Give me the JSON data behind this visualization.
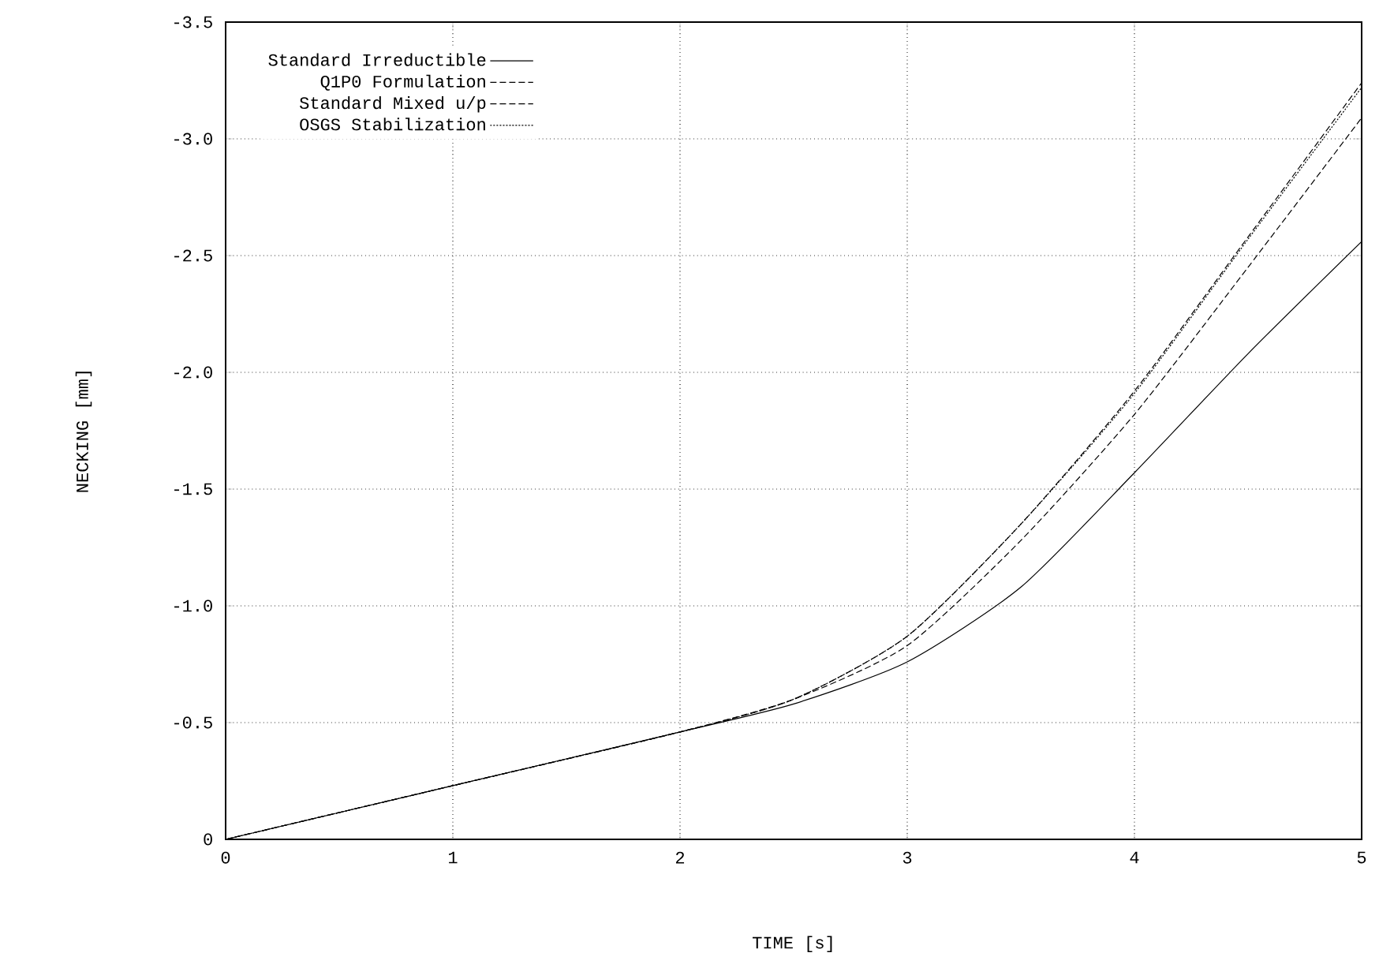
{
  "chart_data": {
    "type": "line",
    "xlabel": "TIME [s]",
    "ylabel": "NECKING [mm]",
    "x": [
      0,
      1,
      2,
      2.5,
      3,
      3.5,
      4,
      4.5,
      5
    ],
    "series": [
      {
        "name": "Standard Irreductible",
        "color": "#000000",
        "line_style": "solid",
        "values": [
          0,
          -0.23,
          -0.46,
          -0.58,
          -0.76,
          -1.08,
          -1.57,
          -2.08,
          -2.56
        ]
      },
      {
        "name": "Q1P0 Formulation",
        "color": "#000000",
        "line_style": "dashed",
        "values": [
          0,
          -0.23,
          -0.46,
          -0.6,
          -0.83,
          -1.28,
          -1.82,
          -2.45,
          -3.09
        ]
      },
      {
        "name": "Standard Mixed u/p",
        "color": "#000000",
        "line_style": "dashed",
        "values": [
          0,
          -0.23,
          -0.46,
          -0.6,
          -0.87,
          -1.35,
          -1.92,
          -2.58,
          -3.24
        ]
      },
      {
        "name": "OSGS Stabilization",
        "color": "#000000",
        "line_style": "dotted",
        "values": [
          0,
          -0.23,
          -0.46,
          -0.6,
          -0.87,
          -1.35,
          -1.91,
          -2.57,
          -3.22
        ]
      }
    ],
    "xlim": [
      0,
      5
    ],
    "ylim": [
      0,
      -3.5
    ],
    "xticks": [
      0,
      1,
      2,
      3,
      4,
      5
    ],
    "yticks": [
      0,
      {
        "value": -0.5,
        "label": "-0.5"
      },
      {
        "value": -1.0,
        "label": "-1.0"
      },
      {
        "value": -1.5,
        "label": "-1.5"
      },
      {
        "value": -2.0,
        "label": "-2.0"
      },
      {
        "value": -2.5,
        "label": "-2.5"
      },
      {
        "value": -3.0,
        "label": "-3.0"
      },
      {
        "value": -3.5,
        "label": "-3.5"
      }
    ],
    "grid": true,
    "legend": "top left",
    "marker": "none"
  }
}
